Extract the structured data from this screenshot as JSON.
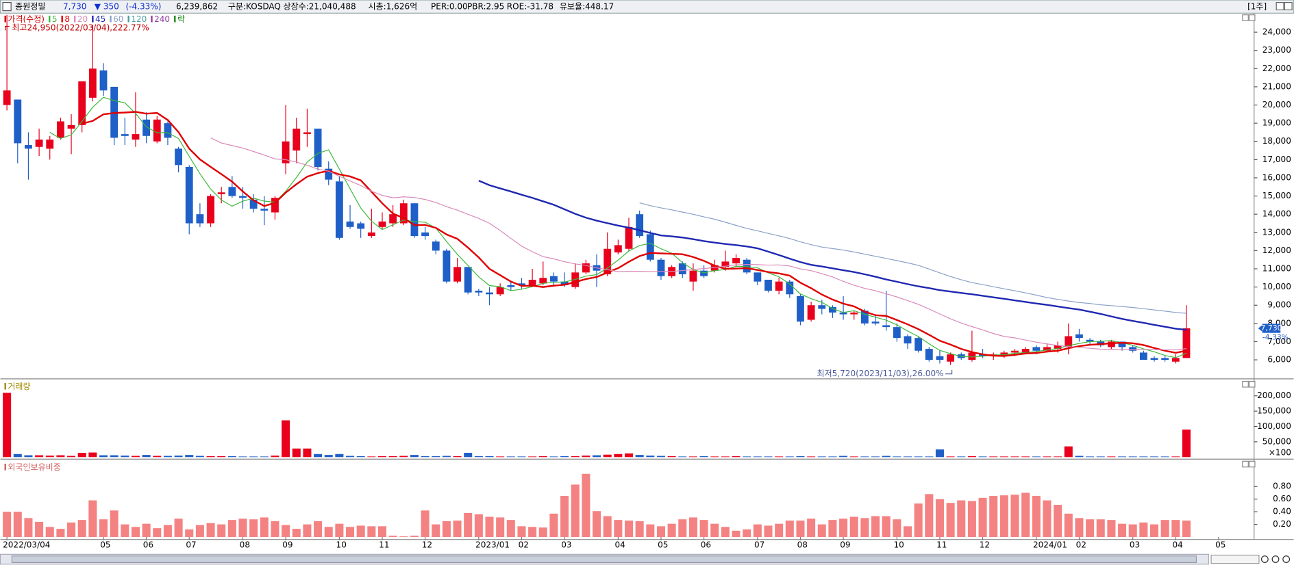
{
  "header": {
    "name": "종원정밀",
    "price": "7,730",
    "change": "▼ 350",
    "change_rate": "(-4.33%)",
    "volume": "6,239,862",
    "market": "구분:KOSDAQ",
    "shares": "상장수:21,040,488",
    "market_cap": "시총:1,626억",
    "per": "PER:0.00",
    "pbr": "PBR:2.95",
    "roe": "ROE:-31.78",
    "reserve": "유보율:448.17",
    "period": "[1주]"
  },
  "chart_data": [
    {
      "type": "candlestick",
      "legend_label": "가격(수정)",
      "legend_color": "#d00000",
      "up_color": "#e8001c",
      "down_color": "#1f5fc8",
      "high_annotation": "최고24,950(2022/03/04),222.77%",
      "low_annotation": "최저5,720(2023/11/03),26.00%",
      "change_label": "-4.33%",
      "lock_label": "락",
      "lock_color": "#1a8a1a",
      "moving_averages": [
        {
          "name": "5",
          "period": 5,
          "color": "#3cb83c",
          "line_width": 1
        },
        {
          "name": "8",
          "period": 8,
          "color": "#e00000",
          "line_width": 2
        },
        {
          "name": "20",
          "period": 20,
          "color": "#d98ab9",
          "line_width": 1
        },
        {
          "name": "45",
          "period": 45,
          "color": "#1f28b0",
          "line_width": 2
        },
        {
          "name": "60",
          "period": 60,
          "color": "#8aa0c8",
          "line_width": 1
        },
        {
          "name": "120",
          "period": 120,
          "color": "#4aa0a0",
          "line_width": 1
        },
        {
          "name": "240",
          "period": 240,
          "color": "#9040a0",
          "line_width": 1
        }
      ],
      "categories": [
        "2022/03/04",
        null,
        null,
        null,
        null,
        null,
        null,
        null,
        null,
        "05",
        null,
        null,
        null,
        "06",
        null,
        null,
        null,
        "07",
        null,
        null,
        null,
        null,
        "08",
        null,
        null,
        null,
        "09",
        null,
        null,
        null,
        null,
        "10",
        null,
        null,
        null,
        "11",
        null,
        null,
        null,
        "12",
        null,
        null,
        null,
        null,
        "2023/01",
        null,
        null,
        null,
        "02",
        null,
        null,
        null,
        "03",
        null,
        null,
        null,
        null,
        "04",
        null,
        null,
        null,
        "05",
        null,
        null,
        null,
        "06",
        null,
        null,
        null,
        null,
        "07",
        null,
        null,
        null,
        "08",
        null,
        null,
        null,
        "09",
        null,
        null,
        null,
        null,
        "10",
        null,
        null,
        null,
        "11",
        null,
        null,
        null,
        "12",
        null,
        null,
        null,
        null,
        "2024/01",
        null,
        null,
        null,
        "02",
        null,
        null,
        null,
        null,
        "03",
        null,
        null,
        null,
        "04",
        null,
        null,
        null,
        "05",
        null,
        null,
        null
      ],
      "open": [
        20000,
        20300,
        17800,
        17700,
        17600,
        18200,
        18700,
        18900,
        20400,
        21900,
        21000,
        18400,
        18100,
        19200,
        18000,
        19000,
        17600,
        16600,
        14000,
        13500,
        15100,
        15500,
        15000,
        14800,
        14300,
        14100,
        16800,
        17500,
        18400,
        18700,
        16500,
        15800,
        13600,
        13500,
        12800,
        13300,
        13500,
        13500,
        14600,
        13000,
        12500,
        12000,
        10300,
        11100,
        9800,
        9700,
        9600,
        10100,
        10200,
        10100,
        10200,
        10600,
        10300,
        10000,
        10800,
        11200,
        10700,
        11900,
        12100,
        14000,
        12900,
        11500,
        10600,
        11300,
        10300,
        10900,
        10900,
        11100,
        11300,
        11500,
        10800,
        10400,
        9800,
        10300,
        9500,
        8200,
        9000,
        8900,
        8600,
        8500,
        8700,
        8100,
        7900,
        7800,
        7300,
        7200,
        6600,
        6200,
        5900,
        6300,
        6000,
        6300,
        6200,
        6200,
        6400,
        6400,
        6700,
        6500,
        6600,
        6700,
        7400,
        7100,
        7000,
        6700,
        7000,
        6700,
        6400,
        6100,
        6100,
        5900,
        6100,
        null,
        null,
        null,
        null,
        null,
        null
      ],
      "high": [
        24950,
        20300,
        18500,
        18700,
        18300,
        19300,
        19500,
        21300,
        24400,
        22300,
        21000,
        19300,
        20700,
        19600,
        19400,
        19100,
        17700,
        16700,
        14600,
        15100,
        15500,
        16100,
        15500,
        15100,
        15000,
        15000,
        20000,
        19300,
        19800,
        18700,
        16900,
        16100,
        14500,
        13600,
        14300,
        14100,
        14500,
        14800,
        14600,
        13300,
        12600,
        12100,
        11600,
        11100,
        9900,
        10000,
        10200,
        10300,
        10500,
        11000,
        11400,
        10800,
        10800,
        11300,
        11500,
        11800,
        13000,
        12600,
        13800,
        14200,
        13100,
        11600,
        11200,
        11400,
        11300,
        11200,
        11500,
        12000,
        11800,
        11600,
        10800,
        10400,
        10500,
        10400,
        9600,
        9200,
        9300,
        9000,
        9500,
        8700,
        8800,
        8500,
        9800,
        8000,
        7400,
        7300,
        6700,
        6500,
        6400,
        6400,
        7600,
        6600,
        6400,
        6500,
        6600,
        6700,
        6800,
        6900,
        7000,
        8000,
        7700,
        7200,
        7100,
        7100,
        7000,
        6800,
        6500,
        6200,
        6200,
        6300,
        9000,
        null,
        null,
        null,
        null,
        null,
        null
      ],
      "low": [
        19700,
        16800,
        15900,
        17200,
        17000,
        18100,
        17300,
        18500,
        20200,
        20500,
        17800,
        17800,
        17700,
        17900,
        17900,
        17800,
        16300,
        12900,
        13300,
        13300,
        14600,
        14900,
        14300,
        14100,
        13400,
        13700,
        16200,
        16800,
        17700,
        16400,
        15600,
        12600,
        13200,
        12700,
        12700,
        13200,
        13300,
        13400,
        12700,
        12600,
        11800,
        10200,
        10200,
        9600,
        9500,
        9000,
        9500,
        9800,
        9900,
        10000,
        10100,
        10100,
        10000,
        9900,
        10700,
        10000,
        10600,
        11800,
        12000,
        12700,
        11400,
        10400,
        10500,
        10500,
        9800,
        10500,
        10800,
        10900,
        11100,
        10700,
        10100,
        9700,
        9600,
        9400,
        7900,
        8100,
        8500,
        8300,
        8200,
        8200,
        7900,
        7900,
        7600,
        7000,
        6600,
        6400,
        5900,
        5800,
        5720,
        6000,
        5900,
        6100,
        6000,
        6100,
        6200,
        6300,
        6300,
        6400,
        6400,
        6300,
        7000,
        6800,
        6700,
        6600,
        6500,
        6400,
        6000,
        5900,
        5900,
        5800,
        6100,
        null,
        null,
        null,
        null,
        null,
        null
      ],
      "close": [
        20800,
        17900,
        17600,
        18100,
        18100,
        19100,
        18900,
        21300,
        22000,
        20800,
        18200,
        18300,
        18400,
        18300,
        19200,
        18200,
        16700,
        13500,
        13500,
        15000,
        15200,
        15000,
        14900,
        14300,
        14200,
        14900,
        18000,
        18700,
        18500,
        16600,
        15900,
        12700,
        13300,
        13200,
        13000,
        13600,
        14000,
        14600,
        12800,
        12800,
        12000,
        10300,
        11100,
        9700,
        9700,
        9600,
        10000,
        10000,
        10100,
        10400,
        10500,
        10300,
        10100,
        10800,
        11300,
        10900,
        12100,
        12300,
        13300,
        12800,
        11500,
        10600,
        11100,
        10700,
        10900,
        10600,
        11200,
        11400,
        11600,
        10800,
        10300,
        9800,
        10300,
        9600,
        8100,
        9000,
        8800,
        8600,
        8500,
        8600,
        8000,
        8000,
        7800,
        7200,
        6900,
        6500,
        6000,
        6000,
        6300,
        6100,
        6400,
        6200,
        6300,
        6400,
        6500,
        6600,
        6500,
        6700,
        6800,
        7300,
        7200,
        7000,
        6800,
        7000,
        6700,
        6500,
        6000,
        6000,
        6000,
        6100,
        7730,
        null,
        null,
        null,
        null,
        null,
        null
      ],
      "ylim": [
        5000,
        25000
      ],
      "yticks": [
        {
          "value": 6000,
          "label": "6,000"
        },
        {
          "value": 7000,
          "label": "7,000"
        },
        {
          "value": 8000,
          "label": "8,000"
        },
        {
          "value": 9000,
          "label": "9,000"
        },
        {
          "value": 10000,
          "label": "10,000"
        },
        {
          "value": 11000,
          "label": "11,000"
        },
        {
          "value": 12000,
          "label": "12,000"
        },
        {
          "value": 13000,
          "label": "13,000"
        },
        {
          "value": 14000,
          "label": "14,000"
        },
        {
          "value": 15000,
          "label": "15,000"
        },
        {
          "value": 16000,
          "label": "16,000"
        },
        {
          "value": 17000,
          "label": "17,000"
        },
        {
          "value": 18000,
          "label": "18,000"
        },
        {
          "value": 19000,
          "label": "19,000"
        },
        {
          "value": 20000,
          "label": "20,000"
        },
        {
          "value": 21000,
          "label": "21,000"
        },
        {
          "value": 22000,
          "label": "22,000"
        },
        {
          "value": 23000,
          "label": "23,000"
        },
        {
          "value": 24000,
          "label": "24,000"
        }
      ]
    },
    {
      "type": "bar",
      "title": "거래량",
      "title_color": "#a08a00",
      "unit": "×100",
      "up_color": "#e8001c",
      "down_color": "#1f5fc8",
      "values": [
        210000,
        10000,
        6000,
        6000,
        5000,
        6000,
        4000,
        14000,
        15000,
        6000,
        6000,
        5000,
        4000,
        7000,
        4000,
        4000,
        5000,
        7000,
        4000,
        3000,
        3000,
        3000,
        2000,
        2000,
        2000,
        5000,
        120000,
        28000,
        28000,
        10000,
        7000,
        10000,
        4000,
        3000,
        2000,
        3000,
        3000,
        4000,
        7000,
        3000,
        3000,
        4000,
        3000,
        14000,
        3000,
        3000,
        2000,
        2000,
        2000,
        2000,
        3000,
        2000,
        3000,
        3000,
        5000,
        6000,
        8000,
        10000,
        12000,
        7000,
        5000,
        4000,
        3000,
        2000,
        2000,
        3000,
        2000,
        2000,
        3000,
        2000,
        2000,
        2000,
        2000,
        2000,
        3000,
        2000,
        2000,
        2000,
        4000,
        2000,
        2000,
        2000,
        4000,
        2000,
        2000,
        2000,
        2000,
        25000,
        2000,
        2000,
        3000,
        2000,
        2000,
        2000,
        2000,
        2000,
        2000,
        2000,
        2000,
        35000,
        4000,
        2000,
        2000,
        2000,
        2000,
        2000,
        2000,
        2000,
        2000,
        2000,
        90000,
        null,
        null,
        null,
        null,
        null,
        null
      ],
      "ylim": [
        0,
        250000
      ],
      "yticks": [
        {
          "value": 50000,
          "label": "50,000"
        },
        {
          "value": 100000,
          "label": "100,000"
        },
        {
          "value": 150000,
          "label": "150,000"
        },
        {
          "value": 200000,
          "label": "200,000"
        }
      ]
    },
    {
      "type": "bar",
      "title": "외국인보유비중",
      "title_color": "#d06060",
      "color": "#f48282",
      "values": [
        0.4,
        0.4,
        0.3,
        0.24,
        0.16,
        0.13,
        0.23,
        0.27,
        0.58,
        0.28,
        0.42,
        0.2,
        0.16,
        0.21,
        0.14,
        0.19,
        0.29,
        0.12,
        0.19,
        0.22,
        0.2,
        0.27,
        0.29,
        0.28,
        0.31,
        0.25,
        0.19,
        0.13,
        0.2,
        0.25,
        0.16,
        0.21,
        0.16,
        0.18,
        0.17,
        0.17,
        0.02,
        0.01,
        0.02,
        0.42,
        0.2,
        0.25,
        0.26,
        0.38,
        0.36,
        0.32,
        0.31,
        0.27,
        0.17,
        0.16,
        0.15,
        0.37,
        0.65,
        0.83,
        1.0,
        0.41,
        0.33,
        0.27,
        0.26,
        0.25,
        0.2,
        0.17,
        0.21,
        0.28,
        0.31,
        0.27,
        0.21,
        0.16,
        0.1,
        0.12,
        0.2,
        0.18,
        0.21,
        0.26,
        0.26,
        0.29,
        0.2,
        0.27,
        0.29,
        0.32,
        0.3,
        0.33,
        0.33,
        0.28,
        0.17,
        0.53,
        0.68,
        0.6,
        0.54,
        0.58,
        0.57,
        0.62,
        0.65,
        0.66,
        0.67,
        0.7,
        0.65,
        0.58,
        0.51,
        0.37,
        0.3,
        0.28,
        0.28,
        0.27,
        0.21,
        0.2,
        0.23,
        0.2,
        0.27,
        0.27,
        0.26,
        null,
        null,
        null,
        null,
        null,
        null
      ],
      "ylim": [
        0,
        1.2
      ],
      "yticks": [
        {
          "value": 0.2,
          "label": "0.20"
        },
        {
          "value": 0.4,
          "label": "0.40"
        },
        {
          "value": 0.6,
          "label": "0.60"
        },
        {
          "value": 0.8,
          "label": "0.80"
        }
      ]
    }
  ]
}
